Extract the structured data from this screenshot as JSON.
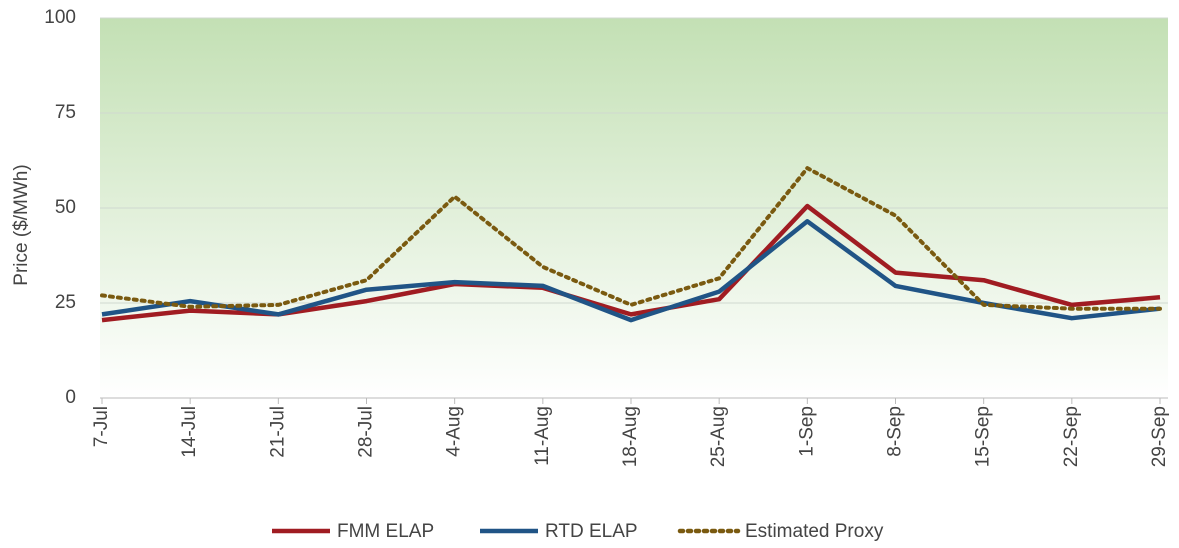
{
  "chart_data": {
    "type": "line",
    "y_label": "Price ($/MWh)",
    "categories": [
      "7-Jul",
      "14-Jul",
      "21-Jul",
      "28-Jul",
      "4-Aug",
      "11-Aug",
      "18-Aug",
      "25-Aug",
      "1-Sep",
      "8-Sep",
      "15-Sep",
      "22-Sep",
      "29-Sep"
    ],
    "series": [
      {
        "name": "FMM ELAP",
        "color": "#a01c22",
        "style": "solid",
        "values": [
          20.5,
          23,
          22,
          25.5,
          30,
          29,
          22,
          26,
          50.5,
          33,
          31,
          24.5,
          26.5
        ]
      },
      {
        "name": "RTD ELAP",
        "color": "#205486",
        "style": "solid",
        "values": [
          22,
          25.5,
          22,
          28.5,
          30.5,
          29.5,
          20.5,
          28,
          46.5,
          29.5,
          25,
          21,
          23.5
        ]
      },
      {
        "name": "Estimated Proxy",
        "color": "#7a5a10",
        "style": "dotted",
        "values": [
          27,
          24,
          24.5,
          31,
          53,
          34.5,
          24.5,
          31.5,
          60.5,
          48,
          24.5,
          23.5,
          23.5
        ]
      }
    ],
    "ylim": [
      0,
      100
    ],
    "yticks": [
      0,
      25,
      50,
      75,
      100
    ],
    "grid": true,
    "legend": "bottom"
  }
}
